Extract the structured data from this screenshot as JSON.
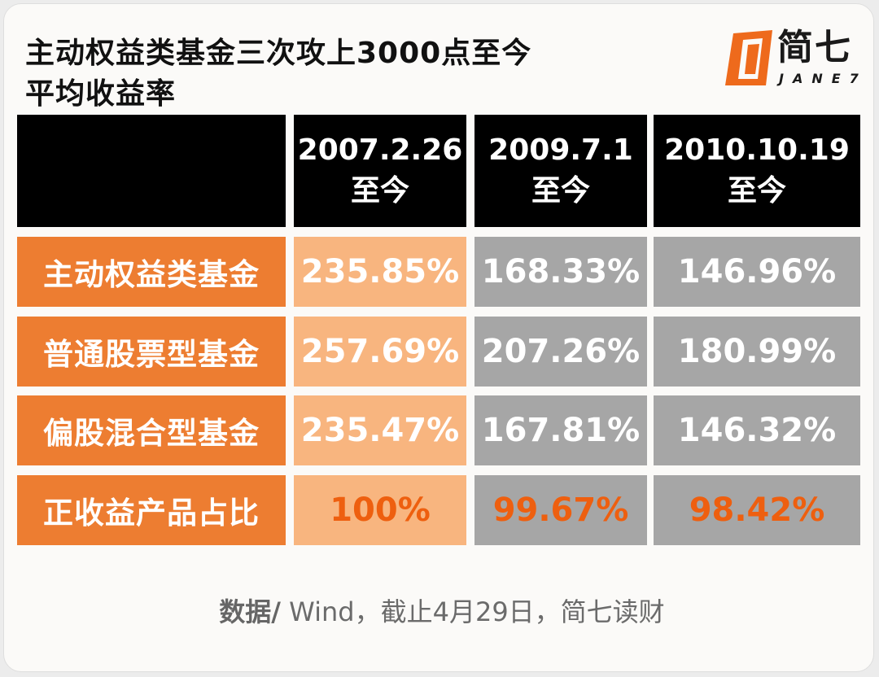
{
  "title_line1": "主动权益类基金三次攻上3000点至今",
  "title_line2": "平均收益率",
  "logo": {
    "name": "简七",
    "sub": "JANE7"
  },
  "chart_data": {
    "type": "table",
    "columns": [
      {
        "date": "2007.2.26",
        "suffix": "至今"
      },
      {
        "date": "2009.7.1",
        "suffix": "至今"
      },
      {
        "date": "2010.10.19",
        "suffix": "至今"
      }
    ],
    "rows": [
      {
        "label": "主动权益类基金",
        "values": [
          "235.85%",
          "168.33%",
          "146.96%"
        ]
      },
      {
        "label": "普通股票型基金",
        "values": [
          "257.69%",
          "207.26%",
          "180.99%"
        ]
      },
      {
        "label": "偏股混合型基金",
        "values": [
          "235.47%",
          "167.81%",
          "146.32%"
        ]
      },
      {
        "label": "正收益产品占比",
        "values": [
          "100%",
          "99.67%",
          "98.42%"
        ]
      }
    ]
  },
  "footer": {
    "prefix": "数据/",
    "text": " Wind，截止4月29日，简七读财"
  },
  "colors": {
    "header_bg": "#000000",
    "label_bg": "#ed7d31",
    "first_col_bg": "#f8b57f",
    "other_col_bg": "#a6a6a6",
    "highlight_text": "#ee5f0f"
  }
}
